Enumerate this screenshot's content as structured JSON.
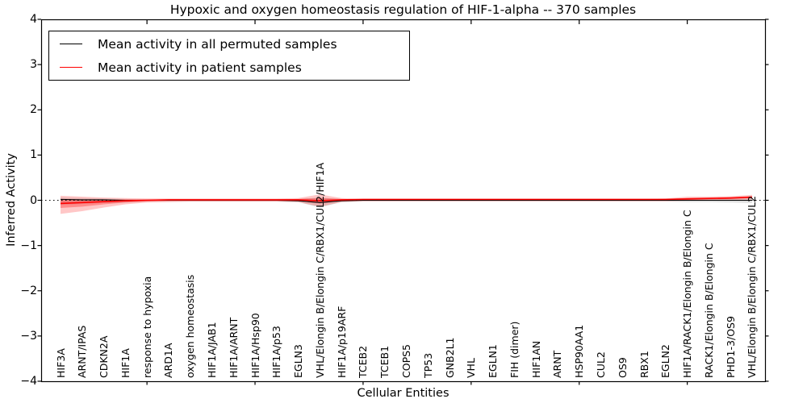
{
  "figure": {
    "title": "Hypoxic and oxygen homeostasis regulation of HIF-1-alpha -- 370 samples",
    "xlabel": "Cellular Entities",
    "ylabel": "Inferred Activity"
  },
  "legend": {
    "items": [
      {
        "label": "Mean activity in all permuted samples",
        "color": "#000000"
      },
      {
        "label": "Mean activity in patient samples",
        "color": "#ff0000"
      }
    ]
  },
  "colors": {
    "background": "#ffffff",
    "frame": "#000000",
    "permuted_line": "#000000",
    "patient_line": "#ff0000"
  },
  "chart_data": {
    "type": "line",
    "title": "Hypoxic and oxygen homeostasis regulation of HIF-1-alpha -- 370 samples",
    "xlabel": "Cellular Entities",
    "ylabel": "Inferred Activity",
    "ylim": [
      -4,
      4
    ],
    "yticks": [
      -4,
      -3,
      -2,
      -1,
      0,
      1,
      2,
      3,
      4
    ],
    "grid": false,
    "legend_position": "upper left",
    "zero_reference_line": 0,
    "major_tick_indices": [
      4,
      9,
      14,
      19,
      24,
      29
    ],
    "categories": [
      "HIF3A",
      "ARNT/IPAS",
      "CDKN2A",
      "HIF1A",
      "response to hypoxia",
      "ARD1A",
      "oxygen homeostasis",
      "HIF1A/JAB1",
      "HIF1A/ARNT",
      "HIF1A/Hsp90",
      "HIF1A/p53",
      "EGLN3",
      "VHL/Elongin B/Elongin C/RBX1/CUL2/HIF1A",
      "HIF1A/p19ARF",
      "TCEB2",
      "TCEB1",
      "COPS5",
      "TP53",
      "GNB2L1",
      "VHL",
      "EGLN1",
      "FIH (dimer)",
      "HIF1AN",
      "ARNT",
      "HSP90AA1",
      "CUL2",
      "OS9",
      "RBX1",
      "EGLN2",
      "HIF1A/RACK1/Elongin B/Elongin C",
      "RACK1/Elongin B/Elongin C",
      "PHD1-3/OS9",
      "VHL/Elongin B/Elongin C/RBX1/CUL2"
    ],
    "series": [
      {
        "name": "Mean activity in all permuted samples",
        "color": "#000000",
        "width": 1.1,
        "values": [
          0.02,
          0.01,
          0.01,
          0.0,
          0.0,
          0.0,
          0.0,
          0.0,
          0.0,
          0.0,
          0.0,
          -0.01,
          -0.05,
          -0.01,
          0.0,
          0.0,
          0.0,
          0.0,
          0.0,
          0.0,
          0.0,
          0.0,
          0.0,
          0.0,
          0.0,
          0.0,
          0.0,
          0.0,
          0.0,
          0.0,
          0.0,
          0.0,
          0.0
        ]
      },
      {
        "name": "Mean activity in patient samples",
        "color": "#ff0000",
        "width": 1.6,
        "values": [
          -0.07,
          -0.05,
          -0.03,
          -0.01,
          0.0,
          0.01,
          0.01,
          0.01,
          0.01,
          0.01,
          0.01,
          0.01,
          -0.01,
          0.01,
          0.02,
          0.02,
          0.02,
          0.02,
          0.02,
          0.02,
          0.02,
          0.02,
          0.02,
          0.02,
          0.02,
          0.02,
          0.02,
          0.02,
          0.02,
          0.03,
          0.04,
          0.05,
          0.07
        ]
      }
    ],
    "bands": [
      {
        "name": "permuted-range",
        "color": "#000000",
        "opacity": 0.12,
        "upper": [
          0.06,
          0.05,
          0.04,
          0.03,
          0.02,
          0.02,
          0.02,
          0.02,
          0.02,
          0.02,
          0.02,
          0.03,
          0.06,
          0.03,
          0.02,
          0.02,
          0.02,
          0.02,
          0.02,
          0.02,
          0.02,
          0.02,
          0.02,
          0.02,
          0.02,
          0.02,
          0.02,
          0.02,
          0.02,
          0.03,
          0.03,
          0.04,
          0.05
        ],
        "lower": [
          -0.1,
          -0.08,
          -0.06,
          -0.05,
          -0.03,
          -0.03,
          -0.03,
          -0.03,
          -0.03,
          -0.03,
          -0.03,
          -0.04,
          -0.16,
          -0.04,
          -0.03,
          -0.03,
          -0.03,
          -0.03,
          -0.03,
          -0.03,
          -0.03,
          -0.03,
          -0.03,
          -0.03,
          -0.03,
          -0.03,
          -0.03,
          -0.03,
          -0.03,
          -0.04,
          -0.04,
          -0.05,
          -0.06
        ]
      },
      {
        "name": "patient-range",
        "color": "#ff0000",
        "opacity": 0.22,
        "upper": [
          0.1,
          0.08,
          0.06,
          0.05,
          0.04,
          0.04,
          0.04,
          0.04,
          0.04,
          0.04,
          0.04,
          0.05,
          0.13,
          0.05,
          0.03,
          0.03,
          0.03,
          0.03,
          0.03,
          0.03,
          0.03,
          0.03,
          0.03,
          0.03,
          0.03,
          0.03,
          0.03,
          0.03,
          0.04,
          0.08,
          0.08,
          0.09,
          0.12
        ],
        "lower": [
          -0.3,
          -0.24,
          -0.16,
          -0.09,
          -0.05,
          -0.04,
          -0.03,
          -0.03,
          -0.03,
          -0.03,
          -0.03,
          -0.04,
          -0.14,
          -0.04,
          -0.02,
          -0.02,
          -0.02,
          -0.02,
          -0.02,
          -0.02,
          -0.02,
          -0.02,
          -0.02,
          -0.02,
          -0.02,
          -0.02,
          -0.02,
          -0.02,
          -0.02,
          -0.01,
          0.0,
          0.0,
          0.02
        ],
        "legend": "Mean activity in patient samples"
      },
      {
        "name": "patient-inner-range",
        "color": "#ff0000",
        "opacity": 0.3,
        "upper": [
          0.01,
          0.01,
          0.01,
          0.02,
          0.02,
          0.02,
          0.02,
          0.02,
          0.02,
          0.02,
          0.02,
          0.03,
          0.05,
          0.03,
          0.02,
          0.02,
          0.02,
          0.02,
          0.02,
          0.02,
          0.02,
          0.02,
          0.02,
          0.02,
          0.02,
          0.02,
          0.02,
          0.02,
          0.03,
          0.05,
          0.06,
          0.07,
          0.09
        ],
        "lower": [
          -0.17,
          -0.14,
          -0.09,
          -0.05,
          -0.02,
          -0.01,
          -0.01,
          -0.01,
          -0.01,
          -0.01,
          -0.01,
          -0.01,
          -0.07,
          -0.01,
          0.0,
          0.0,
          0.0,
          0.0,
          0.0,
          0.0,
          0.0,
          0.0,
          0.0,
          0.0,
          0.0,
          0.0,
          0.0,
          0.0,
          0.0,
          0.01,
          0.02,
          0.03,
          0.05
        ]
      }
    ]
  }
}
